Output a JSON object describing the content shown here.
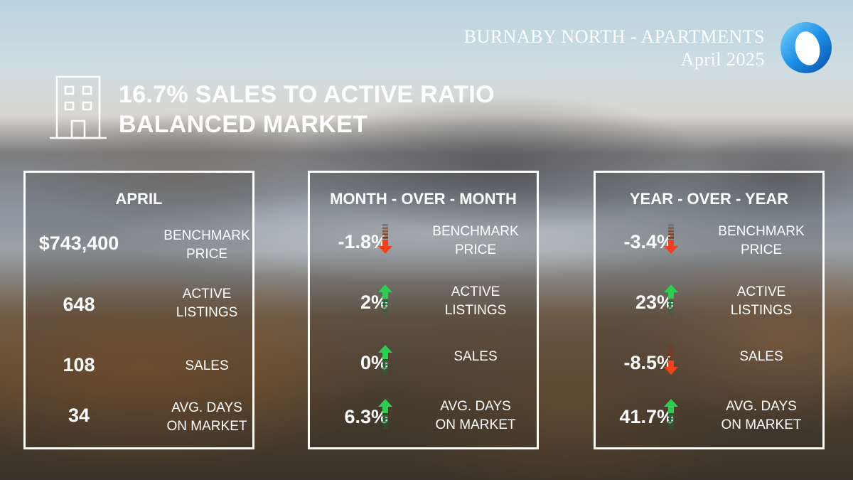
{
  "header": {
    "title": "BURNABY NORTH - APARTMENTS",
    "subtitle": "April 2025"
  },
  "ratio": {
    "line1": "16.7% SALES TO ACTIVE RATIO",
    "line2": "BALANCED MARKET"
  },
  "colors": {
    "up": "#2ecc50",
    "down": "#f2401c"
  },
  "panels": [
    {
      "title": "APRIL",
      "rows": [
        {
          "value": "$743,400",
          "label1": "BENCHMARK",
          "label2": "PRICE"
        },
        {
          "value": "648",
          "label1": "ACTIVE",
          "label2": "LISTINGS"
        },
        {
          "value": "108",
          "label1": "SALES",
          "label2": ""
        },
        {
          "value": "34",
          "label1": "AVG. DAYS",
          "label2": "ON MARKET"
        }
      ]
    },
    {
      "title": "MONTH - OVER - MONTH",
      "rows": [
        {
          "value": "-1.8%",
          "trend": "down",
          "label1": "BENCHMARK",
          "label2": "PRICE"
        },
        {
          "value": "2%",
          "trend": "up",
          "label1": "ACTIVE",
          "label2": "LISTINGS"
        },
        {
          "value": "0%",
          "trend": "up",
          "label1": "SALES",
          "label2": ""
        },
        {
          "value": "6.3%",
          "trend": "up",
          "label1": "AVG. DAYS",
          "label2": "ON MARKET"
        }
      ]
    },
    {
      "title": "YEAR - OVER - YEAR",
      "rows": [
        {
          "value": "-3.4%",
          "trend": "down",
          "label1": "BENCHMARK",
          "label2": "PRICE"
        },
        {
          "value": "23%",
          "trend": "up",
          "label1": "ACTIVE",
          "label2": "LISTINGS"
        },
        {
          "value": "-8.5%",
          "trend": "down",
          "label1": "SALES",
          "label2": ""
        },
        {
          "value": "41.7%",
          "trend": "up",
          "label1": "AVG. DAYS",
          "label2": "ON MARKET"
        }
      ]
    }
  ]
}
